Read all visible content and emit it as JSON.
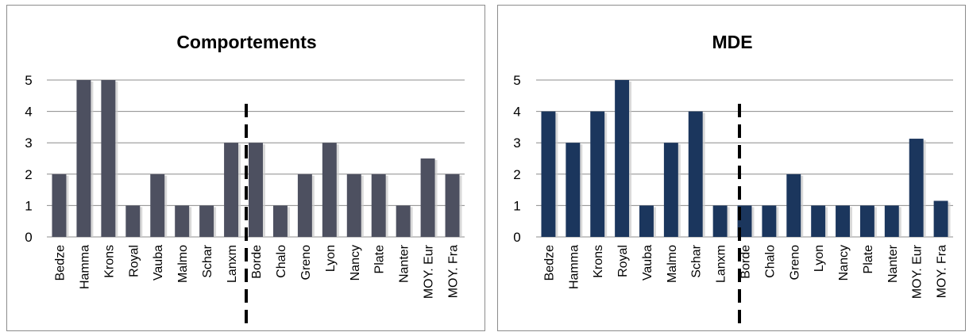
{
  "chart_data": [
    {
      "type": "bar",
      "title": "Comportements",
      "categories": [
        "Bedze",
        "Hamma",
        "Krons",
        "Royal",
        "Vauba",
        "Malmo",
        "Schar",
        "Lanxm",
        "Borde",
        "Chalo",
        "Greno",
        "Lyon",
        "Nancy",
        "Plate",
        "Nanter",
        "MOY. Eur",
        "MOY. Fra"
      ],
      "values": [
        2,
        5,
        5,
        1,
        2,
        1,
        1,
        3,
        3,
        1,
        2,
        3,
        2,
        2,
        1,
        2.5,
        2
      ],
      "ylim": [
        0,
        5
      ],
      "yticks": [
        0,
        1,
        2,
        3,
        4,
        5
      ],
      "grid": true,
      "legend": "none",
      "divider_after_index": 7,
      "bar_color": "#4d5060"
    },
    {
      "type": "bar",
      "title": "MDE",
      "categories": [
        "Bedze",
        "Hamma",
        "Krons",
        "Royal",
        "Vauba",
        "Malmo",
        "Schar",
        "Lanxm",
        "Borde",
        "Chalo",
        "Greno",
        "Lyon",
        "Nancy",
        "Plate",
        "Nanter",
        "MOY. Eur",
        "MOY. Fra"
      ],
      "values": [
        4,
        3,
        4,
        5,
        1,
        3,
        4,
        1,
        1,
        1,
        2,
        1,
        1,
        1,
        1,
        3.13,
        1.15
      ],
      "ylim": [
        0,
        5
      ],
      "yticks": [
        0,
        1,
        2,
        3,
        4,
        5
      ],
      "grid": true,
      "legend": "none",
      "divider_after_index": 1,
      "bar_color": "#1b365d"
    }
  ]
}
